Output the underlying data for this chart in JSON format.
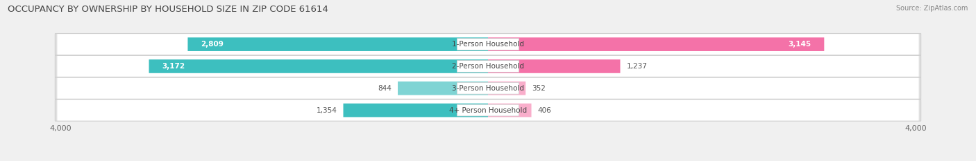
{
  "title": "OCCUPANCY BY OWNERSHIP BY HOUSEHOLD SIZE IN ZIP CODE 61614",
  "source": "Source: ZipAtlas.com",
  "categories": [
    "1-Person Household",
    "2-Person Household",
    "3-Person Household",
    "4+ Person Household"
  ],
  "owner_values": [
    2809,
    3172,
    844,
    1354
  ],
  "renter_values": [
    3145,
    1237,
    352,
    406
  ],
  "owner_color": "#3DBFBF",
  "owner_color_light": "#7FD4D4",
  "renter_color": "#F472A8",
  "renter_color_light": "#F9AECB",
  "axis_max": 4000,
  "background_color": "#f0f0f0",
  "bar_background": "#ffffff",
  "row_bg_color": "#e8e8e8",
  "title_fontsize": 9.5,
  "label_fontsize": 7.5,
  "value_fontsize": 7.5,
  "tick_fontsize": 8,
  "legend_fontsize": 8,
  "source_fontsize": 7
}
